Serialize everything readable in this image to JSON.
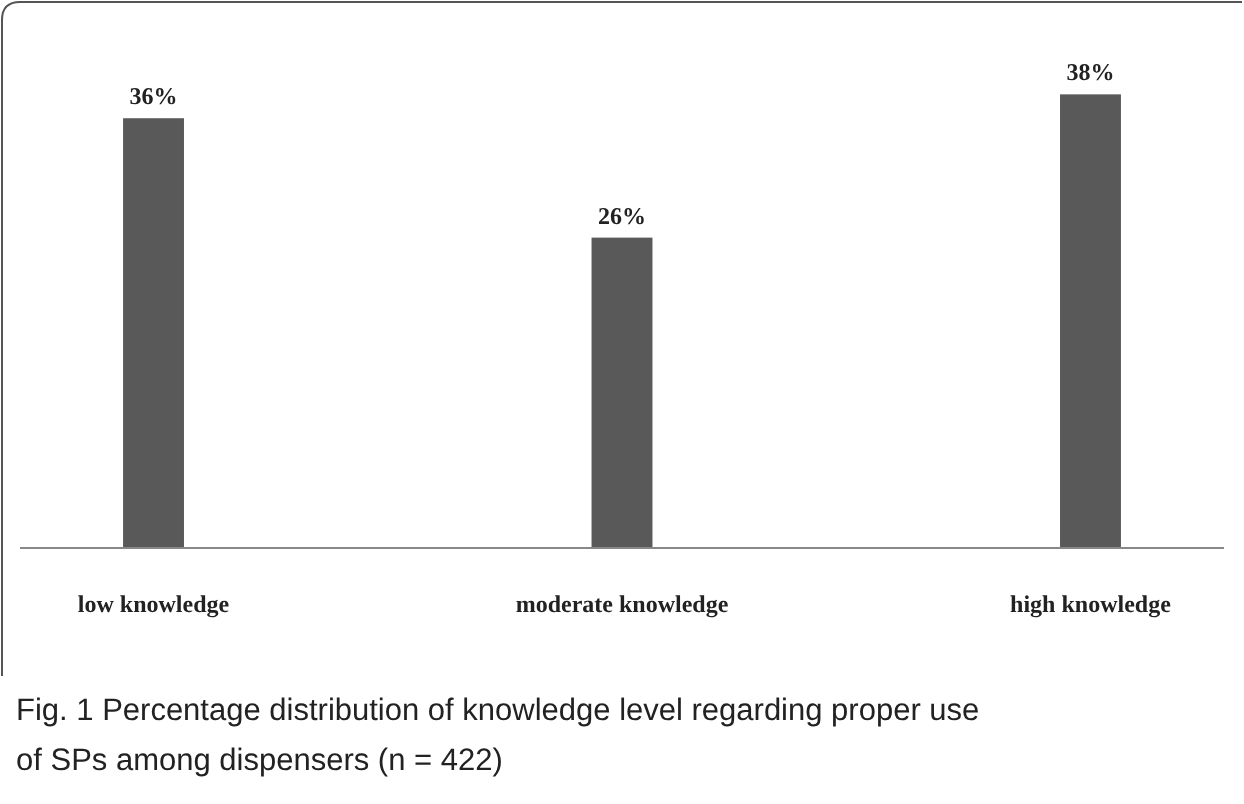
{
  "chart_data": {
    "type": "bar",
    "categories": [
      "low knowledge",
      "moderate knowledge",
      "high knowledge"
    ],
    "values": [
      36,
      26,
      38
    ],
    "value_labels": [
      "36%",
      "26%",
      "38%"
    ],
    "color": "#595959",
    "annotations": [
      "Fig. 1  Percentage distribution of knowledge level regarding proper use of SPs among dispensers (n = 422)"
    ]
  }
}
